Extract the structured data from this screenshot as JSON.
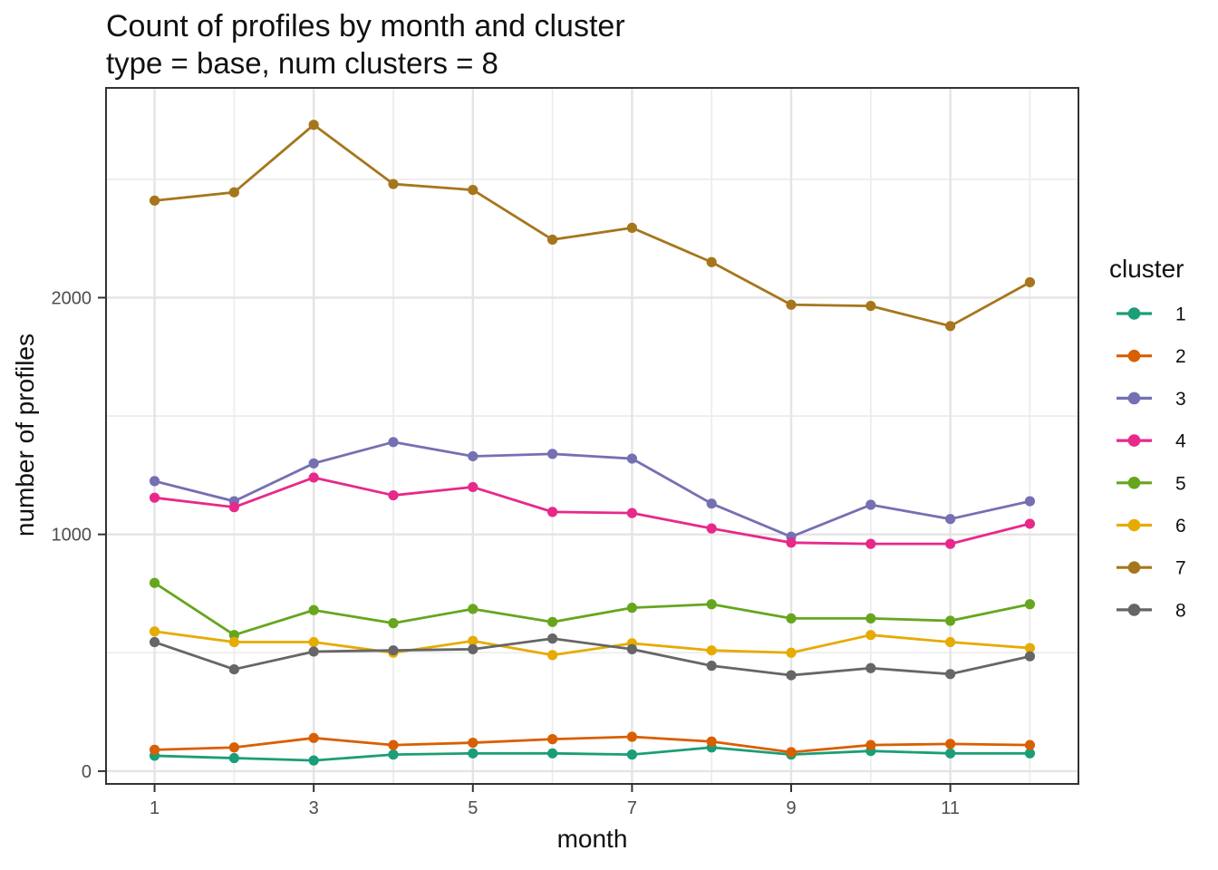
{
  "title": "Count of profiles by month and cluster",
  "subtitle": "type = base, num clusters = 8",
  "chart_data": {
    "type": "line",
    "x": [
      1,
      2,
      3,
      4,
      5,
      6,
      7,
      8,
      9,
      10,
      11,
      12
    ],
    "xlabel": "month",
    "ylabel": "number of profiles",
    "x_ticks": [
      1,
      3,
      5,
      7,
      9,
      11
    ],
    "x_minor": [
      2,
      4,
      6,
      8,
      10,
      12
    ],
    "y_ticks": [
      0,
      1000,
      2000
    ],
    "y_minor": [
      500,
      1500,
      2500
    ],
    "xlim": [
      0.39,
      12.61
    ],
    "ylim": [
      -54,
      2886
    ],
    "grid": true,
    "legend_title": "cluster",
    "legend_position": "right",
    "series": [
      {
        "name": "1",
        "color": "#1B9E77",
        "values": [
          65,
          55,
          45,
          70,
          75,
          75,
          70,
          100,
          70,
          85,
          75,
          75
        ]
      },
      {
        "name": "2",
        "color": "#D95F02",
        "values": [
          90,
          100,
          140,
          110,
          120,
          135,
          145,
          125,
          80,
          110,
          115,
          110
        ]
      },
      {
        "name": "3",
        "color": "#7570B3",
        "values": [
          1225,
          1140,
          1300,
          1390,
          1330,
          1340,
          1320,
          1130,
          990,
          1125,
          1065,
          1140
        ]
      },
      {
        "name": "4",
        "color": "#E7298A",
        "values": [
          1155,
          1115,
          1240,
          1165,
          1200,
          1095,
          1090,
          1025,
          965,
          960,
          960,
          1045
        ]
      },
      {
        "name": "5",
        "color": "#66A61E",
        "values": [
          795,
          575,
          680,
          625,
          685,
          630,
          690,
          705,
          645,
          645,
          635,
          705
        ]
      },
      {
        "name": "6",
        "color": "#E6AB02",
        "values": [
          590,
          545,
          545,
          500,
          550,
          490,
          540,
          510,
          500,
          575,
          545,
          520
        ]
      },
      {
        "name": "7",
        "color": "#A6761D",
        "values": [
          2410,
          2445,
          2730,
          2480,
          2455,
          2245,
          2295,
          2150,
          1970,
          1965,
          1880,
          2065
        ]
      },
      {
        "name": "8",
        "color": "#666666",
        "values": [
          545,
          430,
          505,
          510,
          515,
          560,
          515,
          445,
          405,
          435,
          410,
          485
        ]
      }
    ]
  },
  "colors": {
    "background": "#FFFFFF",
    "panel_background": "#FFFFFF",
    "grid_major": "#E4E4E4",
    "grid_minor": "#EDEDED",
    "panel_border": "#333333",
    "tick_mark": "#333333",
    "tick_label": "#4D4D4D",
    "text": "#111111"
  }
}
